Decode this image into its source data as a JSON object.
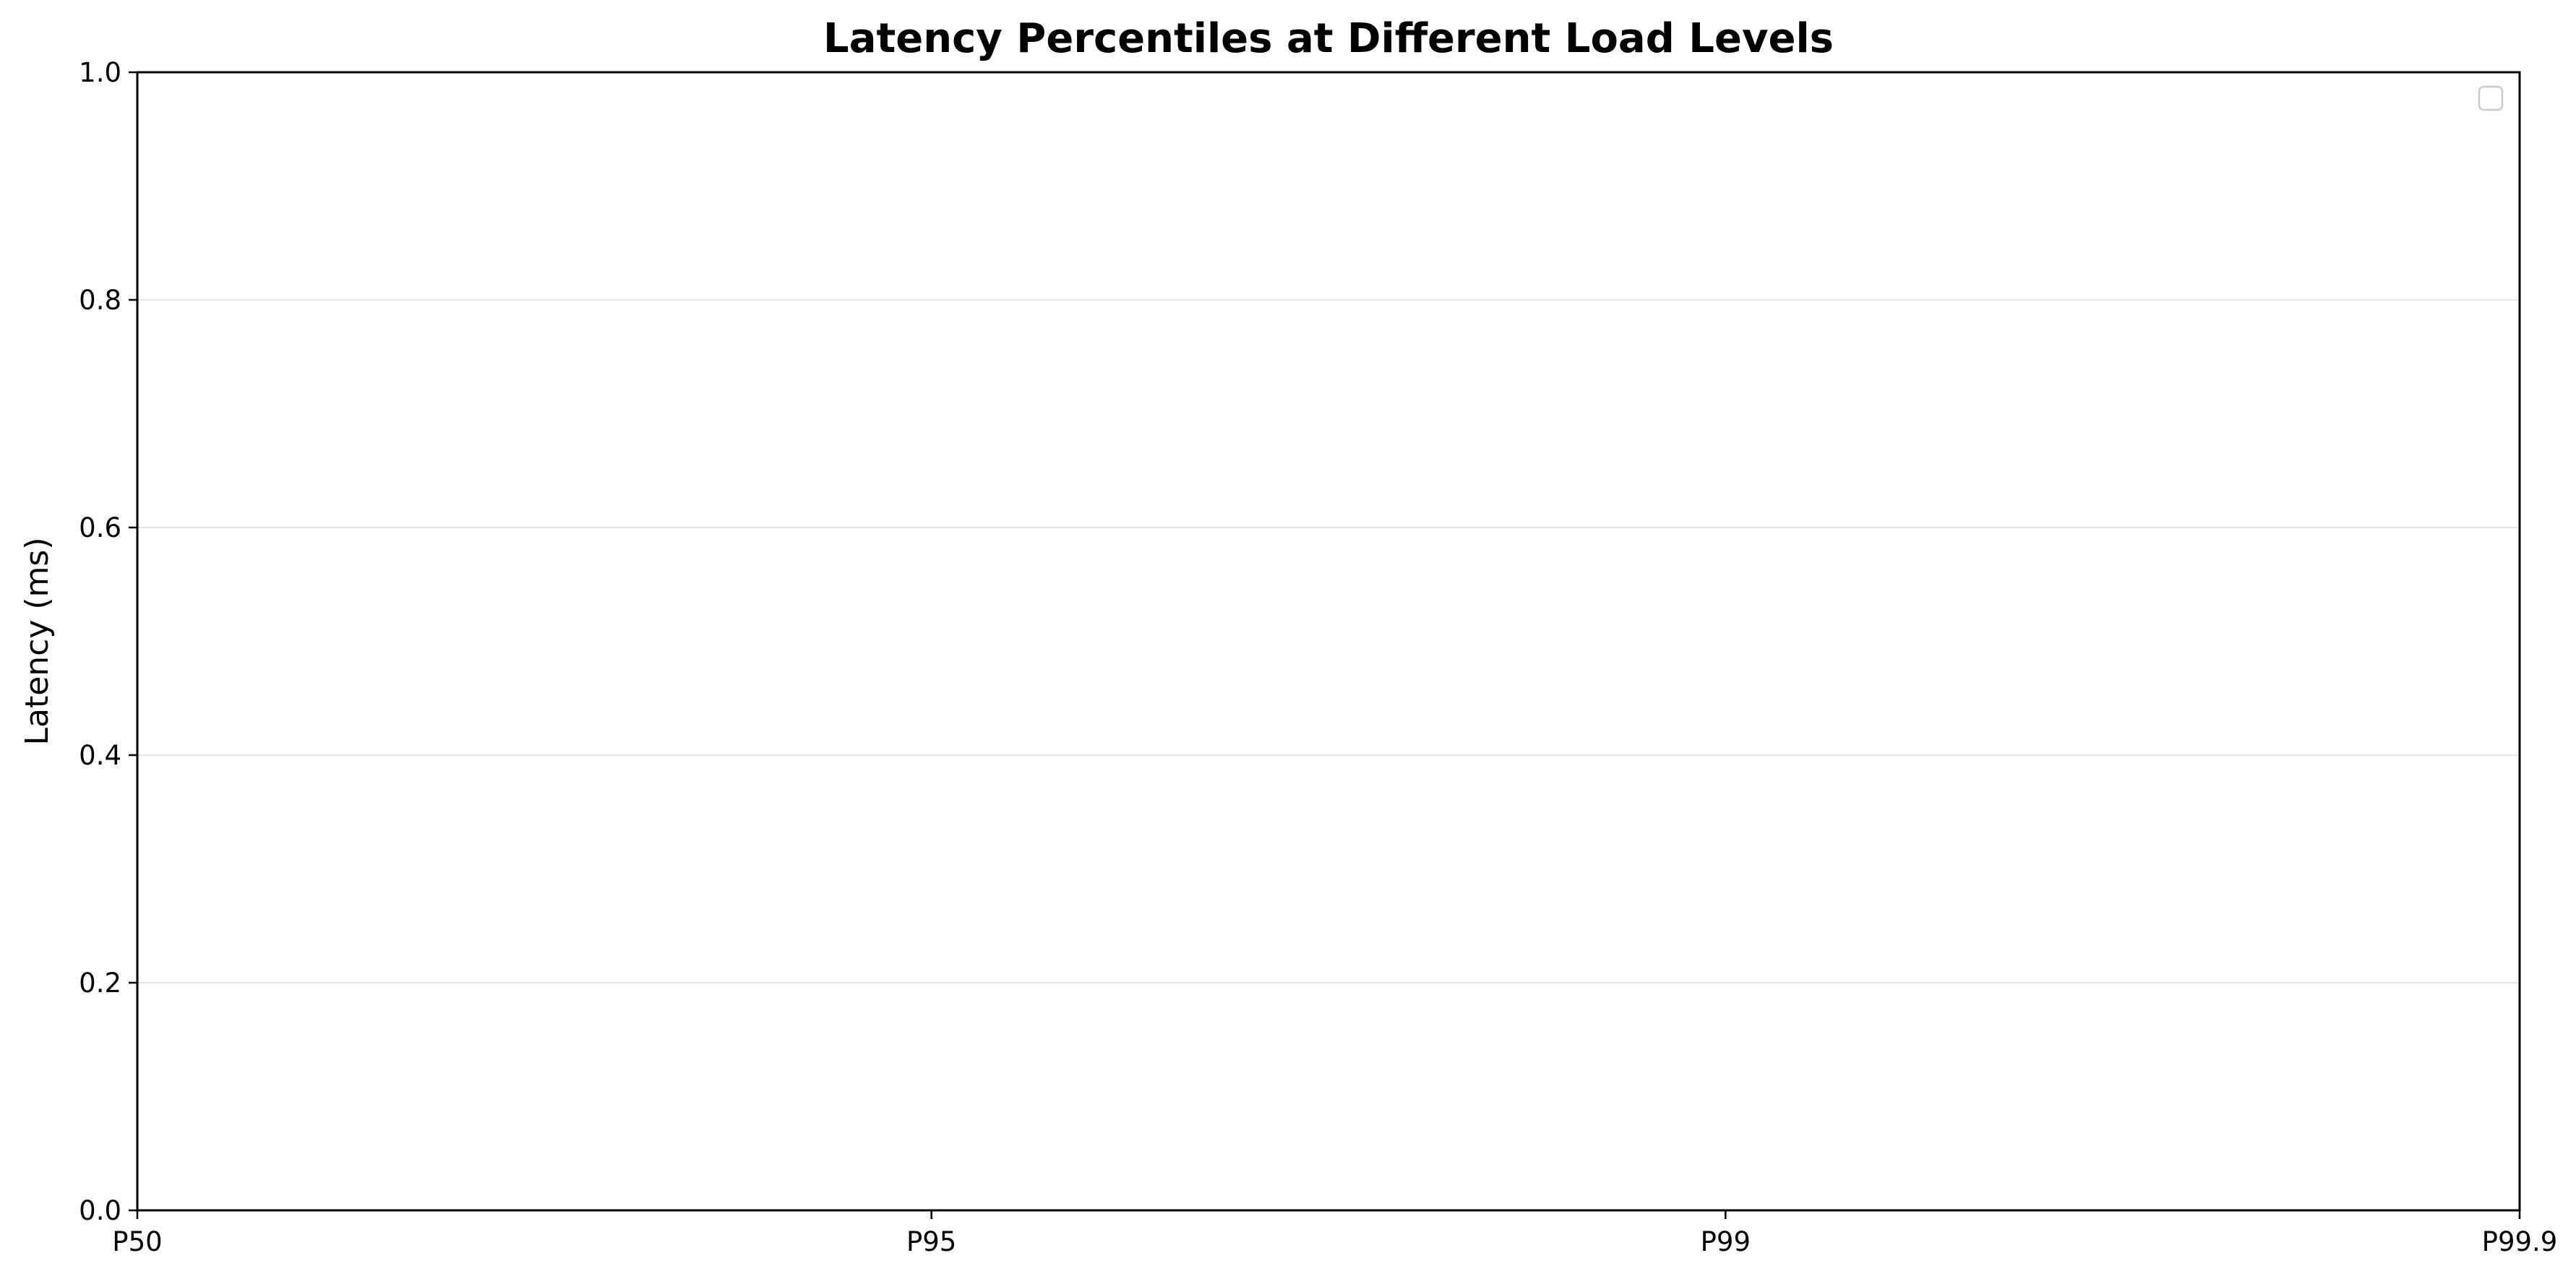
{
  "chart_data": {
    "type": "line",
    "title": "Latency Percentiles at Different Load Levels",
    "xlabel": "",
    "ylabel": "Latency (ms)",
    "categories": [
      "P50",
      "P95",
      "P99",
      "P99.9"
    ],
    "ylim": [
      0,
      1.0
    ],
    "yticks": [
      "0.0",
      "0.2",
      "0.4",
      "0.6",
      "0.8",
      "1.0"
    ],
    "series": [],
    "grid": "horizontal",
    "legend": "top-right",
    "colors": {
      "axis": "#000000",
      "grid": "#e6e6e6",
      "legend_border": "#cccccc",
      "background": "#ffffff"
    }
  }
}
